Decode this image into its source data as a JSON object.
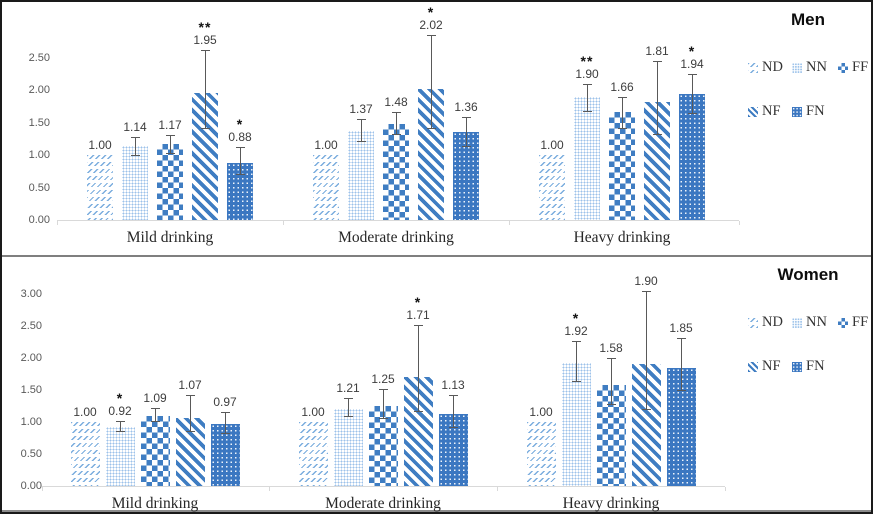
{
  "colors": {
    "series_blue": "#3f7dc2",
    "series_light_blue": "#9cc2ea",
    "series_dark_dotted_blue": "#3b77c1",
    "error_bar": "#595959",
    "axis_line": "#d9d9d9",
    "panel_divider": "#7f7f7f",
    "figure_border": "#1a1a1a"
  },
  "chart_data": [
    {
      "type": "bar",
      "title": "Men",
      "categories": [
        "Mild drinking",
        "Moderate drinking",
        "Heavy drinking"
      ],
      "yticks": [
        "0.00",
        "0.50",
        "1.00",
        "1.50",
        "2.00",
        "2.50"
      ],
      "ylim": [
        0,
        2.5
      ],
      "grid": false,
      "legend_position": "right",
      "legend": [
        "ND",
        "NN",
        "FF",
        "NF",
        "FN"
      ],
      "series": [
        {
          "name": "ND",
          "values": [
            1.0,
            1.0,
            1.0
          ],
          "errors": [
            null,
            null,
            null
          ],
          "annotations": [
            "",
            "",
            ""
          ]
        },
        {
          "name": "NN",
          "values": [
            1.14,
            1.37,
            1.9
          ],
          "errors": [
            [
              0.99,
              1.28
            ],
            [
              1.2,
              1.55
            ],
            [
              1.66,
              2.09
            ]
          ],
          "annotations": [
            "",
            "",
            "**"
          ]
        },
        {
          "name": "FF",
          "values": [
            1.17,
            1.48,
            1.66
          ],
          "errors": [
            [
              1.02,
              1.31
            ],
            [
              1.31,
              1.66
            ],
            [
              1.4,
              1.89
            ]
          ],
          "annotations": [
            "",
            "",
            ""
          ]
        },
        {
          "name": "NF",
          "values": [
            1.95,
            2.02,
            1.81
          ],
          "errors": [
            [
              1.4,
              2.62
            ],
            [
              1.4,
              2.85
            ],
            [
              1.31,
              2.44
            ]
          ],
          "annotations": [
            "**",
            "*",
            ""
          ]
        },
        {
          "name": "FN",
          "values": [
            0.88,
            1.36,
            1.94
          ],
          "errors": [
            [
              0.69,
              1.12
            ],
            [
              1.12,
              1.58
            ],
            [
              1.63,
              2.25
            ]
          ],
          "annotations": [
            "*",
            "",
            "*"
          ]
        }
      ]
    },
    {
      "type": "bar",
      "title": "Women",
      "categories": [
        "Mild drinking",
        "Moderate drinking",
        "Heavy drinking"
      ],
      "yticks": [
        "0.00",
        "0.50",
        "1.00",
        "1.50",
        "2.00",
        "2.50",
        "3.00"
      ],
      "ylim": [
        0,
        3.0
      ],
      "grid": false,
      "legend_position": "right",
      "legend": [
        "ND",
        "NN",
        "FF",
        "NF",
        "FN"
      ],
      "series": [
        {
          "name": "ND",
          "values": [
            1.0,
            1.0,
            1.0
          ],
          "errors": [
            null,
            null,
            null
          ],
          "annotations": [
            "",
            "",
            ""
          ]
        },
        {
          "name": "NN",
          "values": [
            0.92,
            1.21,
            1.92
          ],
          "errors": [
            [
              0.84,
              1.02
            ],
            [
              1.08,
              1.37
            ],
            [
              1.62,
              2.27
            ]
          ],
          "annotations": [
            "*",
            "",
            "*"
          ]
        },
        {
          "name": "FF",
          "values": [
            1.09,
            1.25,
            1.58
          ],
          "errors": [
            [
              1.0,
              1.22
            ],
            [
              1.05,
              1.52
            ],
            [
              1.26,
              2.0
            ]
          ],
          "annotations": [
            "",
            "",
            ""
          ]
        },
        {
          "name": "NF",
          "values": [
            1.07,
            1.71,
            1.9
          ],
          "errors": [
            [
              0.85,
              1.42
            ],
            [
              1.16,
              2.52
            ],
            [
              1.18,
              3.05
            ]
          ],
          "annotations": [
            "",
            "*",
            ""
          ]
        },
        {
          "name": "FN",
          "values": [
            0.97,
            1.13,
            1.85
          ],
          "errors": [
            [
              0.82,
              1.16
            ],
            [
              0.9,
              1.42
            ],
            [
              1.48,
              2.32
            ]
          ],
          "annotations": [
            "",
            "",
            ""
          ]
        }
      ]
    }
  ]
}
